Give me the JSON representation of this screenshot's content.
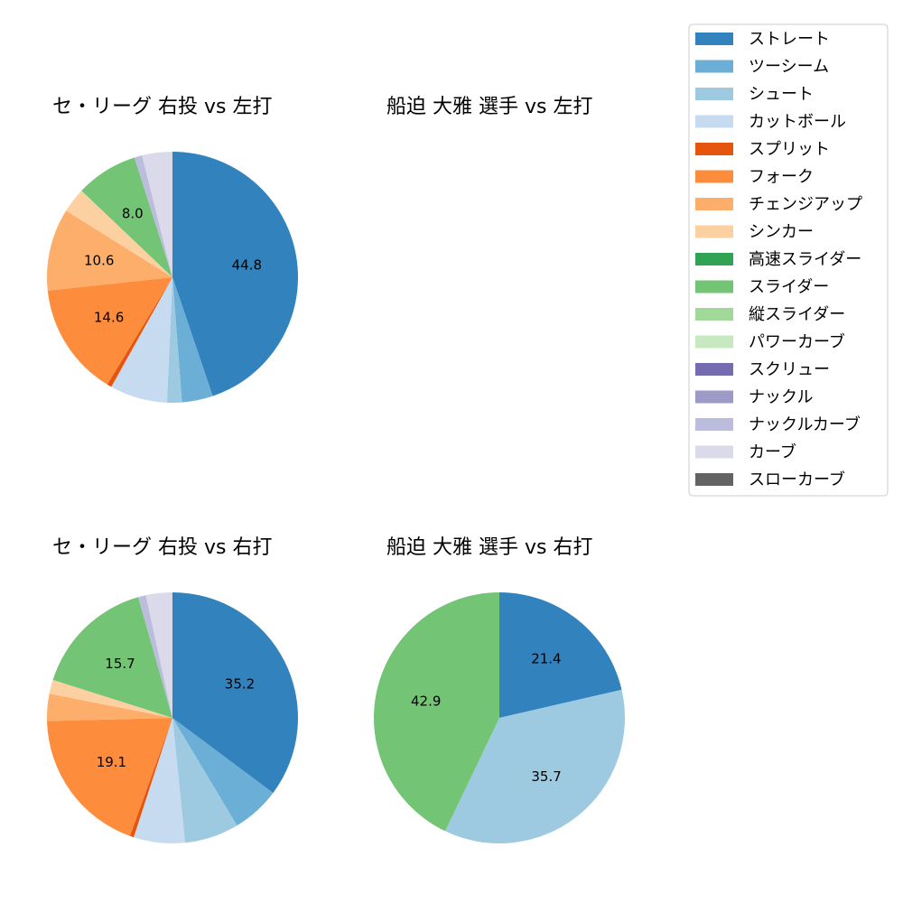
{
  "chart_data": [
    {
      "type": "pie",
      "title": "セ・リーグ 右投 vs 左打",
      "slices": [
        {
          "category": "ストレート",
          "value": 44.8,
          "label": "44.8"
        },
        {
          "category": "ツーシーム",
          "value": 4.0,
          "label": ""
        },
        {
          "category": "シュート",
          "value": 1.9,
          "label": ""
        },
        {
          "category": "カットボール",
          "value": 7.4,
          "label": ""
        },
        {
          "category": "スプリット",
          "value": 0.6,
          "label": ""
        },
        {
          "category": "フォーク",
          "value": 14.6,
          "label": "14.6"
        },
        {
          "category": "チェンジアップ",
          "value": 10.6,
          "label": "10.6"
        },
        {
          "category": "シンカー",
          "value": 3.2,
          "label": ""
        },
        {
          "category": "スライダー",
          "value": 8.0,
          "label": "8.0"
        },
        {
          "category": "ナックルカーブ",
          "value": 1.0,
          "label": ""
        },
        {
          "category": "カーブ",
          "value": 3.9,
          "label": ""
        }
      ]
    },
    {
      "type": "pie",
      "title": "船迫 大雅 選手 vs 左打",
      "slices": []
    },
    {
      "type": "pie",
      "title": "セ・リーグ 右投 vs 右打",
      "slices": [
        {
          "category": "ストレート",
          "value": 35.2,
          "label": "35.2"
        },
        {
          "category": "ツーシーム",
          "value": 6.2,
          "label": ""
        },
        {
          "category": "シュート",
          "value": 7.0,
          "label": ""
        },
        {
          "category": "カットボール",
          "value": 6.6,
          "label": ""
        },
        {
          "category": "スプリット",
          "value": 0.5,
          "label": ""
        },
        {
          "category": "フォーク",
          "value": 19.1,
          "label": "19.1"
        },
        {
          "category": "チェンジアップ",
          "value": 3.5,
          "label": ""
        },
        {
          "category": "シンカー",
          "value": 1.8,
          "label": ""
        },
        {
          "category": "スライダー",
          "value": 15.7,
          "label": "15.7"
        },
        {
          "category": "ナックルカーブ",
          "value": 1.0,
          "label": ""
        },
        {
          "category": "カーブ",
          "value": 3.4,
          "label": ""
        }
      ]
    },
    {
      "type": "pie",
      "title": "船迫 大雅 選手 vs 右打",
      "slices": [
        {
          "category": "ストレート",
          "value": 21.4,
          "label": "21.4"
        },
        {
          "category": "シュート",
          "value": 35.7,
          "label": "35.7"
        },
        {
          "category": "スライダー",
          "value": 42.9,
          "label": "42.9"
        }
      ]
    }
  ],
  "legend": {
    "placement": "top-right",
    "items": [
      {
        "label": "ストレート",
        "color": "#3182bd"
      },
      {
        "label": "ツーシーム",
        "color": "#6baed6"
      },
      {
        "label": "シュート",
        "color": "#9ecae1"
      },
      {
        "label": "カットボール",
        "color": "#c6dbef"
      },
      {
        "label": "スプリット",
        "color": "#e6550d"
      },
      {
        "label": "フォーク",
        "color": "#fd8d3c"
      },
      {
        "label": "チェンジアップ",
        "color": "#fdae6b"
      },
      {
        "label": "シンカー",
        "color": "#fdd0a2"
      },
      {
        "label": "高速スライダー",
        "color": "#31a354"
      },
      {
        "label": "スライダー",
        "color": "#74c476"
      },
      {
        "label": "縦スライダー",
        "color": "#a1d99b"
      },
      {
        "label": "パワーカーブ",
        "color": "#c7e9c0"
      },
      {
        "label": "スクリュー",
        "color": "#756bb1"
      },
      {
        "label": "ナックル",
        "color": "#9e9ac8"
      },
      {
        "label": "ナックルカーブ",
        "color": "#bcbddc"
      },
      {
        "label": "カーブ",
        "color": "#dadaeb"
      },
      {
        "label": "スローカーブ",
        "color": "#636363"
      }
    ]
  }
}
